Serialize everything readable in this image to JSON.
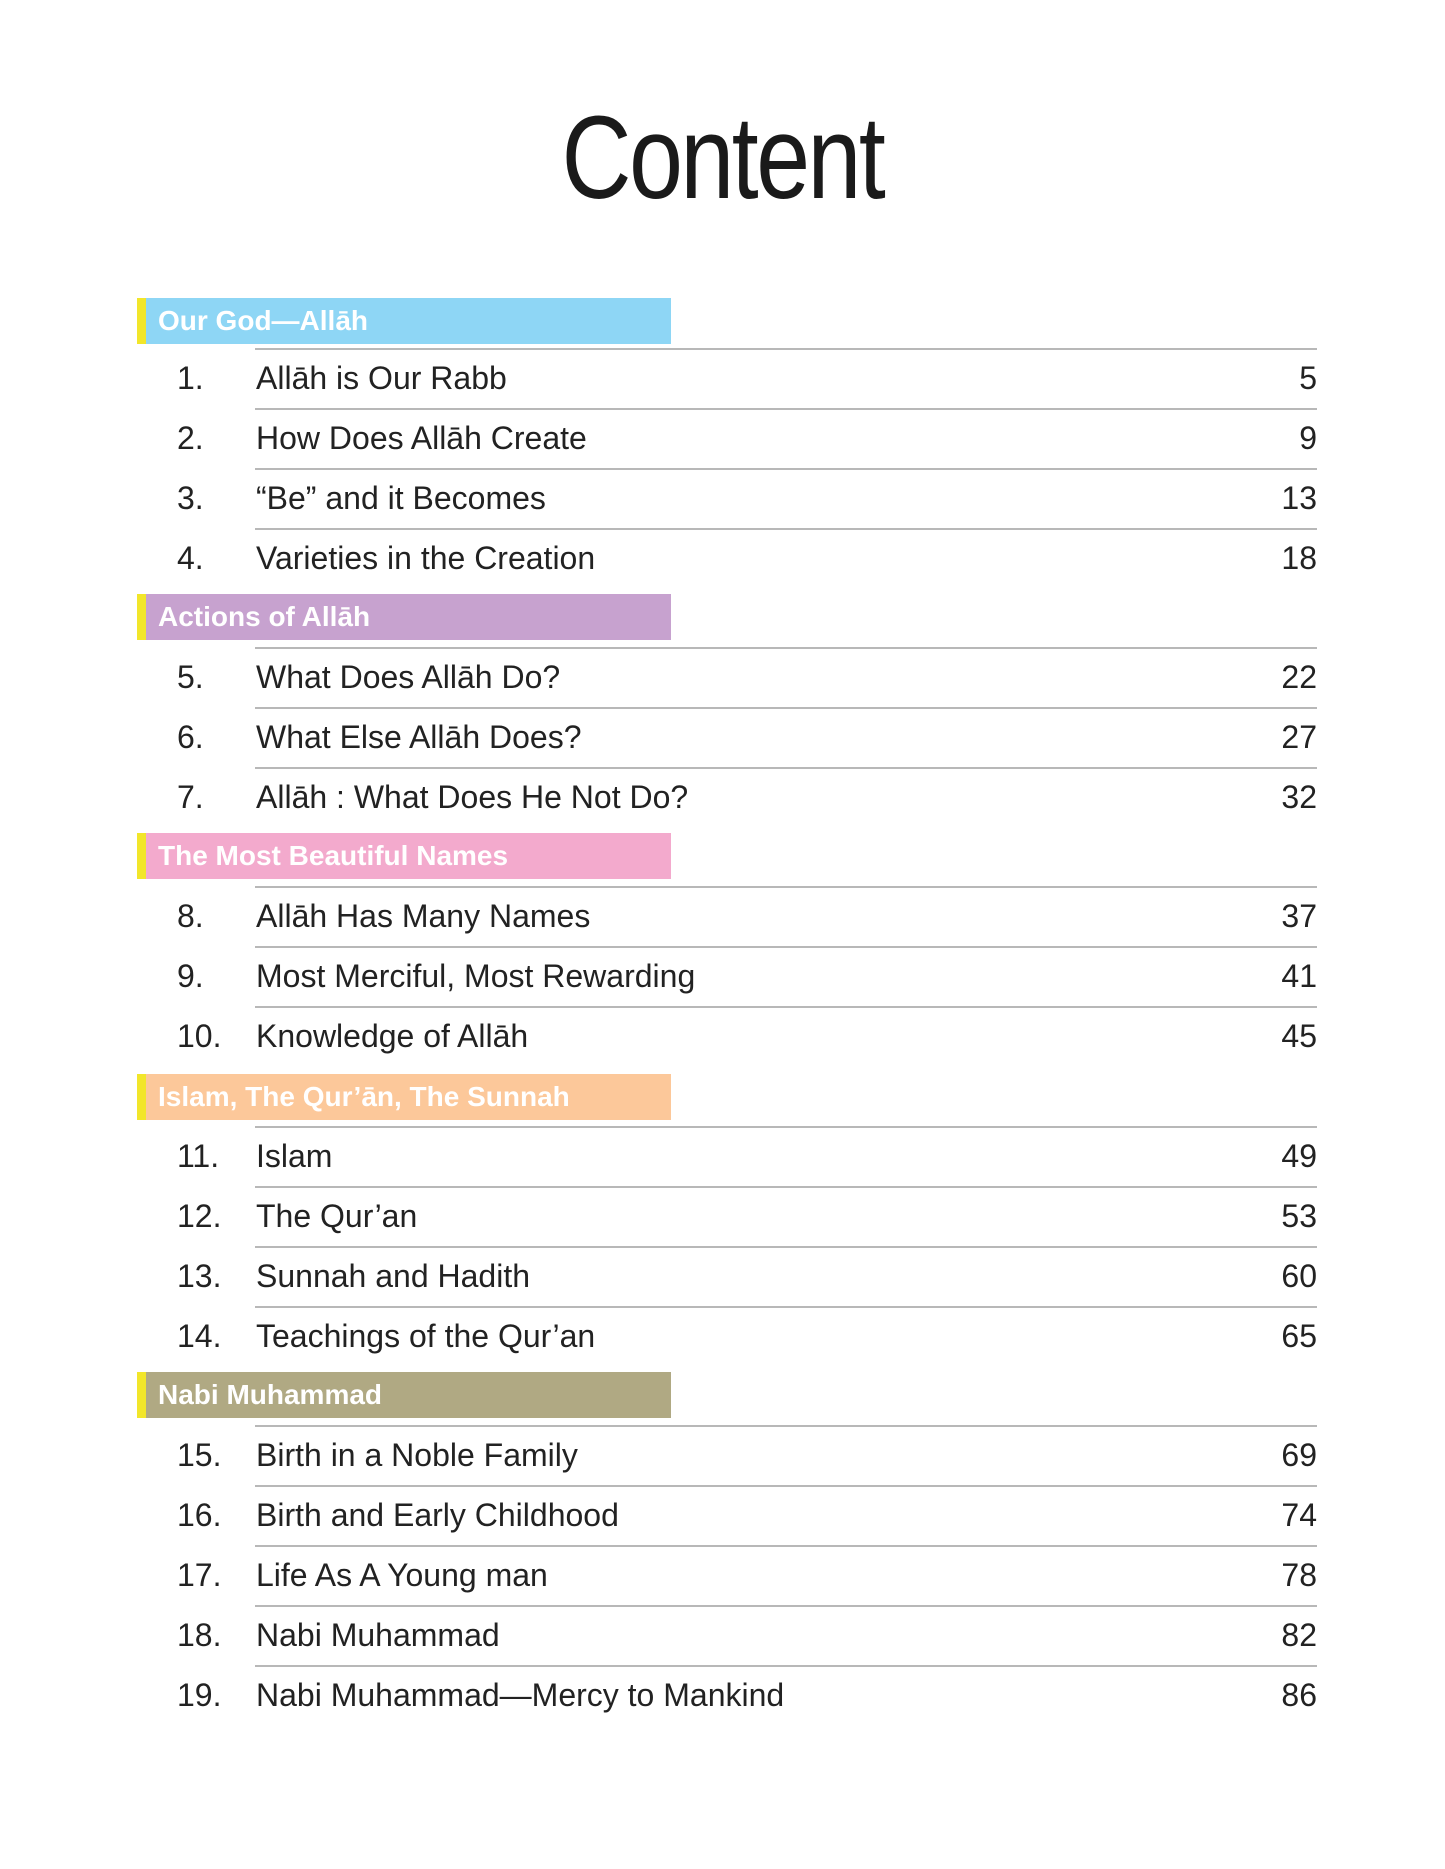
{
  "title": "Content",
  "sections": [
    {
      "header": "Our God—Allāh",
      "color": "#8ed6f5",
      "entries": [
        {
          "num": "1.",
          "label": "Allāh is Our Rabb",
          "page": "5"
        },
        {
          "num": "2.",
          "label": "How Does Allāh Create",
          "page": "9"
        },
        {
          "num": "3.",
          "label": "“Be” and it Becomes",
          "page": "13"
        },
        {
          "num": "4.",
          "label": "Varieties in the Creation",
          "page": "18"
        }
      ]
    },
    {
      "header": "Actions of Allāh",
      "color": "#c7a2cf",
      "entries": [
        {
          "num": "5.",
          "label": "What Does Allāh Do?",
          "page": "22"
        },
        {
          "num": "6.",
          "label": "What Else Allāh Does?",
          "page": "27"
        },
        {
          "num": "7.",
          "label": "Allāh : What Does He Not Do?",
          "page": "32"
        }
      ]
    },
    {
      "header": "The Most Beautiful Names",
      "color": "#f3aacd",
      "entries": [
        {
          "num": "8.",
          "label": "Allāh Has Many Names",
          "page": "37"
        },
        {
          "num": "9.",
          "label": "Most Merciful, Most Rewarding",
          "page": "41"
        },
        {
          "num": "10.",
          "label": "Knowledge of Allāh",
          "page": "45"
        }
      ]
    },
    {
      "header": "Islam, The Qur’ān, The Sunnah",
      "color": "#fcc89a",
      "entries": [
        {
          "num": "11.",
          "label": "Islam",
          "page": "49"
        },
        {
          "num": "12.",
          "label": "The Qur’an",
          "page": "53"
        },
        {
          "num": "13.",
          "label": "Sunnah and Hadith",
          "page": "60"
        },
        {
          "num": "14.",
          "label": "Teachings of the Qur’an",
          "page": "65"
        }
      ]
    },
    {
      "header": "Nabi Muhammad",
      "color": "#b0a983",
      "entries": [
        {
          "num": "15.",
          "label": "Birth in a Noble Family",
          "page": "69"
        },
        {
          "num": "16.",
          "label": "Birth and Early Childhood",
          "page": "74"
        },
        {
          "num": "17.",
          "label": "Life As A Young man",
          "page": "78"
        },
        {
          "num": "18.",
          "label": "Nabi Muhammad",
          "page": "82"
        },
        {
          "num": "19.",
          "label": "Nabi Muhammad—Mercy to Mankind",
          "page": "86"
        }
      ]
    }
  ]
}
